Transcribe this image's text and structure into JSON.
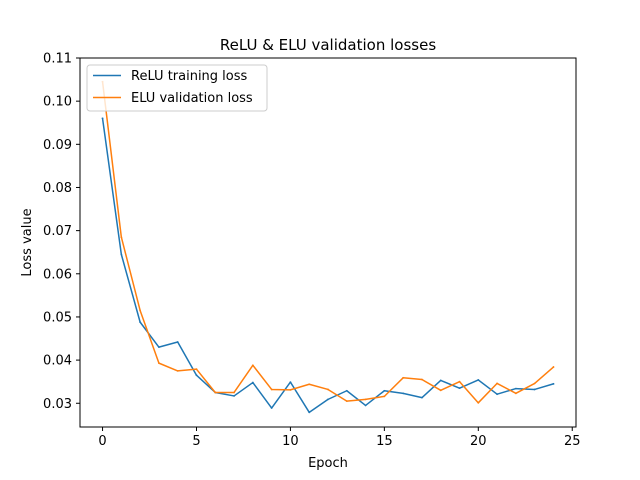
{
  "chart_data": {
    "type": "line",
    "title": "ReLU & ELU validation losses",
    "xlabel": "Epoch",
    "ylabel": "Loss value",
    "xlim": [
      -1.2,
      25.2
    ],
    "ylim": [
      0.0245,
      0.11
    ],
    "xticks": [
      0,
      5,
      10,
      15,
      20,
      25
    ],
    "xtick_labels": [
      "0",
      "5",
      "10",
      "15",
      "20",
      "25"
    ],
    "yticks": [
      0.03,
      0.04,
      0.05,
      0.06,
      0.07,
      0.08,
      0.09,
      0.1,
      0.11
    ],
    "ytick_labels": [
      "0.03",
      "0.04",
      "0.05",
      "0.06",
      "0.07",
      "0.08",
      "0.09",
      "0.10",
      "0.11"
    ],
    "grid": false,
    "legend_position": "top-left",
    "x": [
      0,
      1,
      2,
      3,
      4,
      5,
      6,
      7,
      8,
      9,
      10,
      11,
      12,
      13,
      14,
      15,
      16,
      17,
      18,
      19,
      20,
      21,
      22,
      23,
      24
    ],
    "series": [
      {
        "name": "ReLU training loss",
        "color": "#1f77b4",
        "values": [
          0.096,
          0.0645,
          0.0488,
          0.043,
          0.0442,
          0.0365,
          0.0325,
          0.0317,
          0.0348,
          0.0289,
          0.0349,
          0.0279,
          0.0309,
          0.0329,
          0.0295,
          0.0329,
          0.0323,
          0.0313,
          0.0353,
          0.0335,
          0.0354,
          0.0321,
          0.0334,
          0.0332,
          0.0345
        ]
      },
      {
        "name": "ELU validation loss",
        "color": "#ff7f0e",
        "values": [
          0.1045,
          0.0685,
          0.0515,
          0.0393,
          0.0375,
          0.0379,
          0.0325,
          0.0325,
          0.0388,
          0.0332,
          0.0331,
          0.0344,
          0.0332,
          0.0305,
          0.0309,
          0.0316,
          0.0359,
          0.0355,
          0.033,
          0.035,
          0.0301,
          0.0346,
          0.0323,
          0.0346,
          0.0384
        ]
      }
    ]
  }
}
